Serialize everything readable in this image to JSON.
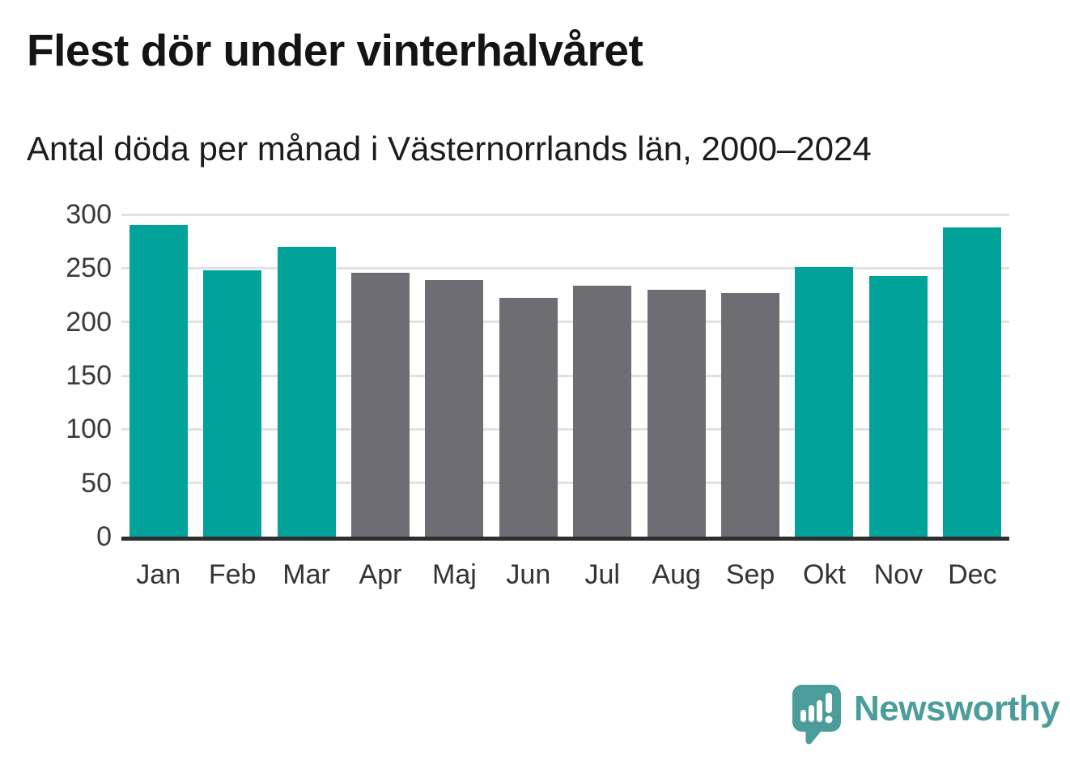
{
  "title": "Flest dör under vinterhalvåret",
  "subtitle": "Antal döda per månad i Västernorrlands län, 2000–2024",
  "chart_data": {
    "type": "bar",
    "title": "Flest dör under vinterhalvåret",
    "subtitle": "Antal döda per månad i Västernorrlands län, 2000–2024",
    "categories": [
      "Jan",
      "Feb",
      "Mar",
      "Apr",
      "Maj",
      "Jun",
      "Jul",
      "Aug",
      "Sep",
      "Okt",
      "Nov",
      "Dec"
    ],
    "values": [
      290,
      248,
      270,
      246,
      239,
      222,
      234,
      230,
      227,
      251,
      243,
      288
    ],
    "bar_colors": [
      "winter_teal",
      "winter_teal",
      "winter_teal",
      "summer_gray",
      "summer_gray",
      "summer_gray",
      "summer_gray",
      "summer_gray",
      "summer_gray",
      "winter_teal",
      "winter_teal",
      "winter_teal"
    ],
    "palette": {
      "winter_teal": "#00A29A",
      "summer_gray": "#6E6D73"
    },
    "xlabel": "",
    "ylabel": "",
    "ylim": [
      0,
      300
    ],
    "yticks": [
      0,
      50,
      100,
      150,
      200,
      250,
      300
    ],
    "grid": true,
    "legend": "none",
    "layout": {
      "grid_color": "#E2E2E2",
      "axis_color": "#2E2E2E",
      "background": "#FFFFFF"
    }
  },
  "footer": {
    "brand": "Newsworthy",
    "brand_color": "#4A9D9B",
    "logo_icon": "speech-bubble-bar-chart-icon"
  }
}
